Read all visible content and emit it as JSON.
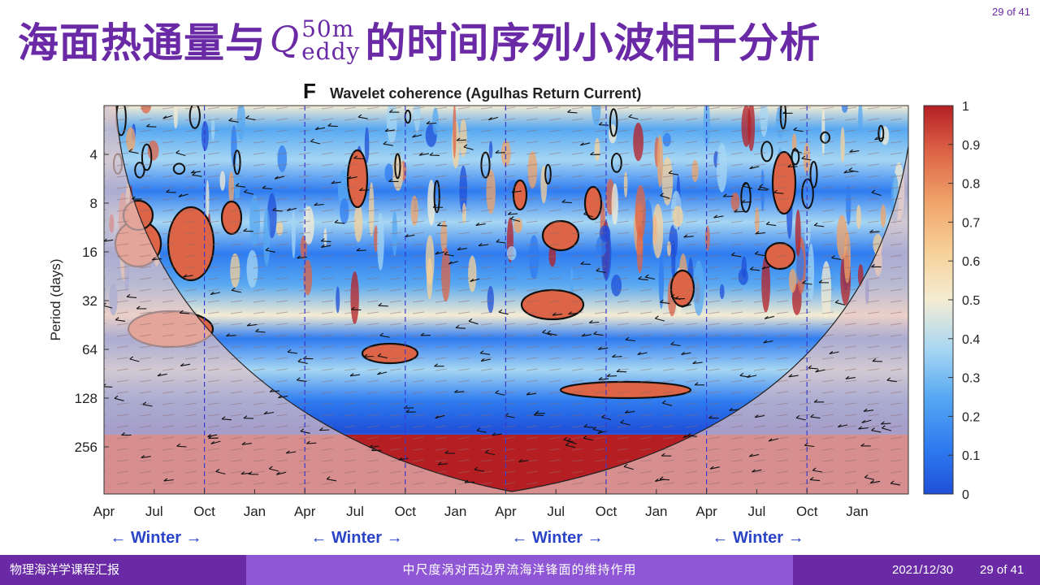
{
  "header": {
    "title_before": "海面热通量与",
    "title_symbol": "Q",
    "title_sup": "50m",
    "title_sub": "eddy",
    "title_after": "的时间序列小波相干分析",
    "page_corner": "29 of 41"
  },
  "chart_data": {
    "type": "heatmap",
    "panel_letter": "F",
    "title": "Wavelet coherence (Agulhas Return Current)",
    "ylabel": "Period (days)",
    "y_scale": "log2",
    "y_ticks": [
      4,
      8,
      16,
      32,
      64,
      128,
      256
    ],
    "x_ticks": [
      "Apr",
      "Jul",
      "Oct",
      "Jan",
      "Apr",
      "Jul",
      "Oct",
      "Jan",
      "Apr",
      "Jul",
      "Oct",
      "Jan",
      "Apr",
      "Jul",
      "Oct",
      "Jan"
    ],
    "season_marks": [
      "← Winter →",
      "← Winter →",
      "← Winter →",
      "← Winter →"
    ],
    "colorbar": {
      "min": 0,
      "max": 1,
      "ticks": [
        "1",
        "0.9",
        "0.8",
        "0.7",
        "0.6",
        "0.5",
        "0.4",
        "0.3",
        "0.2",
        "0.1",
        "0"
      ],
      "colormap": [
        "#1f4fd8",
        "#2f7cf0",
        "#57a8f2",
        "#a6d6f3",
        "#f4ecd3",
        "#f7d29a",
        "#f0a46a",
        "#dd6446",
        "#b51f24"
      ]
    },
    "colors": {
      "cone_outside": "#d9a8a8",
      "significance_contour": "#111111",
      "winter_marker": "#3a3acc"
    },
    "coherence_bands": [
      {
        "period": 4,
        "level": "alternating high/low (noisy)"
      },
      {
        "period": 16,
        "level": "0.4-0.6"
      },
      {
        "period": 32,
        "level": "0.3-0.5"
      },
      {
        "period": 64,
        "level": "0.1-0.3"
      },
      {
        "period": 128,
        "level": "0.1-0.2"
      },
      {
        "period": 256,
        "level": "~1.0 (lower edge)"
      }
    ]
  },
  "footer": {
    "left": "物理海洋学课程汇报",
    "center": "中尺度涡对西边界流海洋锋面的维持作用",
    "date": "2021/12/30",
    "page": "29 of 41"
  }
}
